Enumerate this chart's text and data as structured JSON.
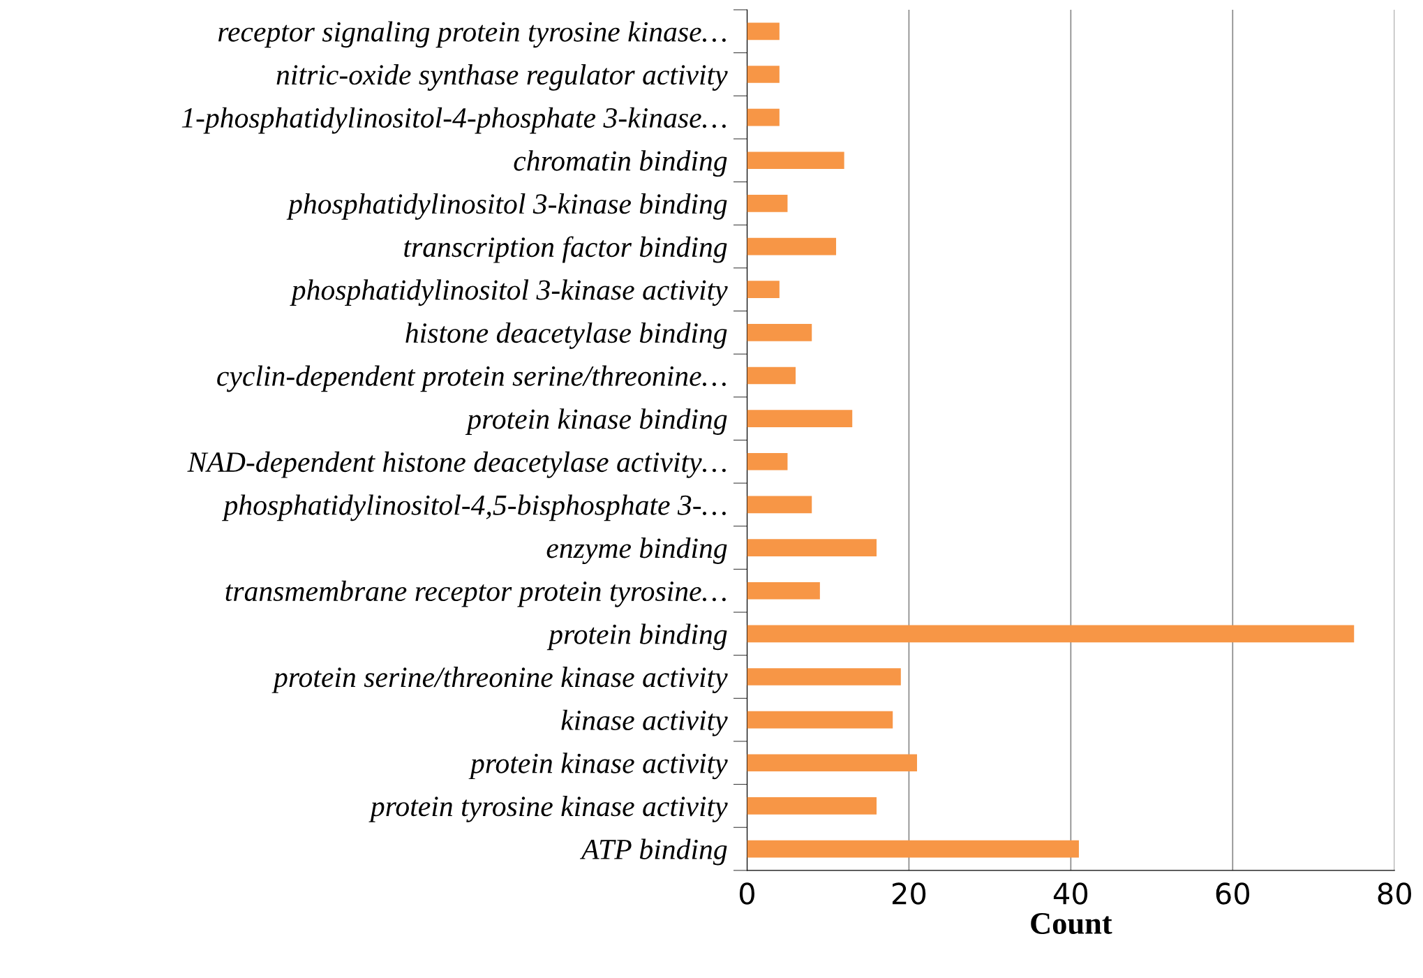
{
  "chart_data": {
    "type": "bar",
    "orientation": "horizontal",
    "xlabel": "Count",
    "categories": [
      "receptor signaling protein tyrosine kinase…",
      "nitric-oxide synthase regulator activity",
      "1-phosphatidylinositol-4-phosphate 3-kinase…",
      "chromatin binding",
      "phosphatidylinositol 3-kinase binding",
      "transcription factor binding",
      "phosphatidylinositol 3-kinase activity",
      "histone deacetylase binding",
      "cyclin-dependent protein serine/threonine…",
      "protein kinase binding",
      "NAD-dependent histone deacetylase activity…",
      "phosphatidylinositol-4,5-bisphosphate 3-…",
      "enzyme binding",
      "transmembrane receptor protein tyrosine…",
      "protein binding",
      "protein serine/threonine kinase activity",
      "kinase activity",
      "protein kinase activity",
      "protein tyrosine kinase activity",
      "ATP binding"
    ],
    "values": [
      4,
      4,
      4,
      12,
      5,
      11,
      4,
      8,
      6,
      13,
      5,
      8,
      16,
      9,
      75,
      19,
      18,
      21,
      16,
      41
    ],
    "color": "#f79646",
    "xlim": [
      0,
      80
    ],
    "xticks": [
      0,
      20,
      40,
      60,
      80
    ],
    "grid": "x"
  }
}
